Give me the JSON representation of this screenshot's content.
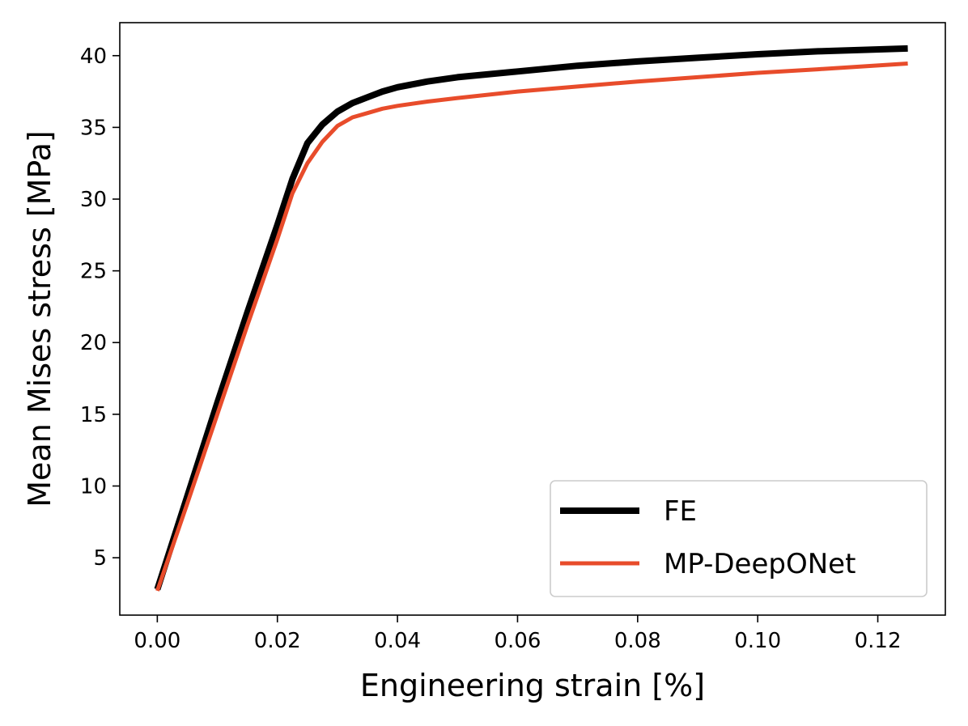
{
  "chart_data": {
    "type": "line",
    "title": "",
    "xlabel": "Engineering strain [%]",
    "ylabel": "Mean Mises stress [MPa]",
    "xlim": [
      -0.00625,
      0.13125
    ],
    "ylim": [
      1.0,
      42.3
    ],
    "xticks": [
      0.0,
      0.02,
      0.04,
      0.06,
      0.08,
      0.1,
      0.12
    ],
    "xtick_labels": [
      "0.00",
      "0.02",
      "0.04",
      "0.06",
      "0.08",
      "0.10",
      "0.12"
    ],
    "yticks": [
      5,
      10,
      15,
      20,
      25,
      30,
      35,
      40
    ],
    "ytick_labels": [
      "5",
      "10",
      "15",
      "20",
      "25",
      "30",
      "35",
      "40"
    ],
    "grid": false,
    "legend_position": "lower-right",
    "series": [
      {
        "name": "FE",
        "color": "#000000",
        "line_width": "thick",
        "x": [
          0.0,
          0.005,
          0.01,
          0.015,
          0.02,
          0.0225,
          0.025,
          0.0275,
          0.03,
          0.0325,
          0.035,
          0.0375,
          0.04,
          0.045,
          0.05,
          0.06,
          0.07,
          0.08,
          0.09,
          0.1,
          0.11,
          0.125
        ],
        "y": [
          2.8,
          9.3,
          15.8,
          22.1,
          28.2,
          31.4,
          33.9,
          35.2,
          36.1,
          36.7,
          37.1,
          37.5,
          37.8,
          38.2,
          38.5,
          38.9,
          39.3,
          39.6,
          39.85,
          40.1,
          40.3,
          40.5
        ]
      },
      {
        "name": "MP-DeepONet",
        "color": "#e84c2b",
        "line_width": "thin",
        "x": [
          0.0,
          0.005,
          0.01,
          0.015,
          0.02,
          0.0225,
          0.025,
          0.0275,
          0.03,
          0.0325,
          0.035,
          0.0375,
          0.04,
          0.045,
          0.05,
          0.06,
          0.07,
          0.08,
          0.09,
          0.1,
          0.11,
          0.125
        ],
        "y": [
          2.7,
          8.8,
          15.0,
          21.2,
          27.2,
          30.4,
          32.5,
          34.0,
          35.1,
          35.7,
          36.0,
          36.3,
          36.5,
          36.8,
          37.05,
          37.5,
          37.85,
          38.2,
          38.5,
          38.8,
          39.05,
          39.45
        ]
      }
    ]
  }
}
